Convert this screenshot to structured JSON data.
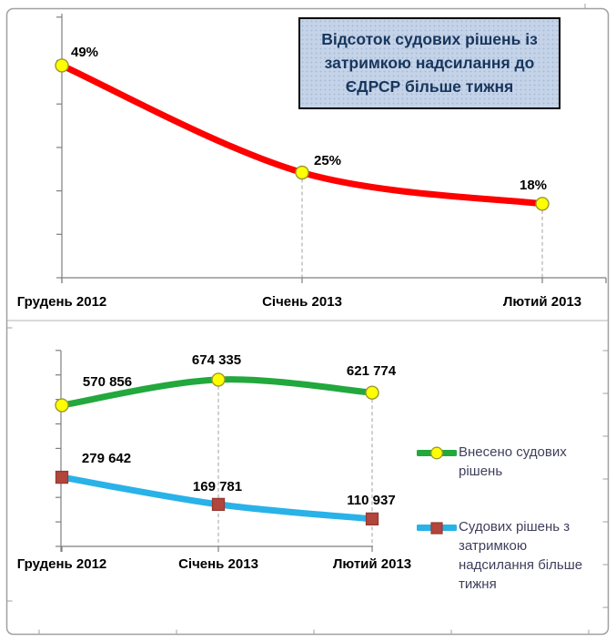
{
  "chart_data": [
    {
      "type": "line",
      "title": "Відсоток судових рішень із затримкою надсилання до ЄДРСР більше тижня",
      "title_lines": [
        "Відсоток судових рішень із",
        "затримкою надсилання до",
        "ЄДРСР більше тижня"
      ],
      "categories": [
        "Грудень 2012",
        "Січень 2013",
        "Лютий 2013"
      ],
      "series": [
        {
          "name": "Відсоток судових рішень із затримкою надсилання до ЄДРСР більше тижня",
          "values": [
            49,
            25,
            18
          ],
          "labels": [
            "49%",
            "25%",
            "18%"
          ],
          "color": "#ff0000",
          "marker": "circle",
          "marker_fill": "#ffff00",
          "marker_stroke": "#99992e"
        }
      ],
      "ylim": [
        0,
        60
      ],
      "yunit": "percent",
      "grid": "off",
      "legend_position": "none"
    },
    {
      "type": "line",
      "title": "",
      "categories": [
        "Грудень 2012",
        "Січень 2013",
        "Лютий 2013"
      ],
      "series": [
        {
          "name": "Внесено судових рішень",
          "values": [
            570856,
            674335,
            621774
          ],
          "labels": [
            "570 856",
            "674 335",
            "621 774"
          ],
          "color": "#22a83c",
          "marker": "circle",
          "marker_fill": "#ffff00",
          "marker_stroke": "#99992e"
        },
        {
          "name": "Судових рішень з затримкою надсилання більше тижня",
          "values": [
            279642,
            169781,
            110937
          ],
          "labels": [
            "279 642",
            "169 781",
            "110 937"
          ],
          "color": "#29b2e8",
          "marker": "square",
          "marker_fill": "#b2453c",
          "marker_stroke": "#943a32"
        }
      ],
      "ylim": [
        0,
        800000
      ],
      "grid": "off",
      "legend_position": "right"
    }
  ],
  "colors": {
    "axis": "#7f7f7f",
    "frame": "#a0a0a0",
    "divider": "#b5b5b5",
    "drop_line": "#b0b0b0",
    "title_bg": "#c5d3e8",
    "title_text": "#17365d",
    "legend_text": "#3f3f5c"
  }
}
